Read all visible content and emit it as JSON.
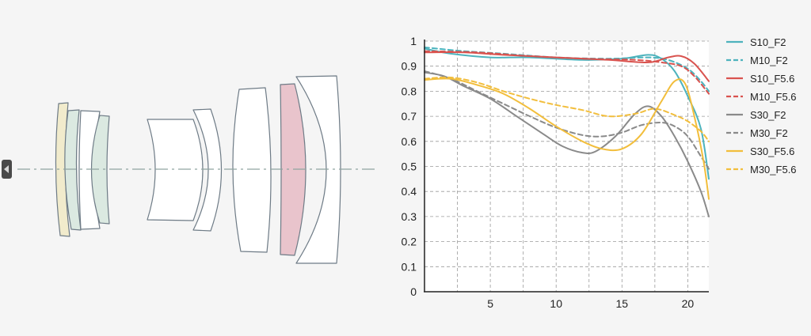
{
  "colors": {
    "background": "#f5f5f5",
    "plot_background": "#ffffff",
    "axis": "#222222",
    "grid": "#9a9a9a",
    "optical_axis": "#8fa3a0",
    "lens_outline": "#6e7b86",
    "element_cream": "#f1ebcc",
    "element_mint": "#dbe9e1",
    "element_pink": "#e9c4cc",
    "element_white": "#ffffff",
    "side_tab": "#4a4a4a"
  },
  "icons": {
    "side_tab": "triangle-left-icon"
  },
  "chart_data": {
    "type": "line",
    "title": "",
    "xlabel": "",
    "ylabel": "",
    "xlim": [
      0,
      21.6
    ],
    "ylim": [
      0,
      1
    ],
    "xticks": [
      5,
      10,
      15,
      20
    ],
    "xtick_labels": [
      "5",
      "10",
      "15",
      "20"
    ],
    "yticks": [
      0,
      0.1,
      0.2,
      0.3,
      0.4,
      0.5,
      0.6,
      0.7,
      0.8,
      0.9,
      1
    ],
    "ytick_labels": [
      "0",
      "0.1",
      "0.2",
      "0.3",
      "0.4",
      "0.5",
      "0.6",
      "0.7",
      "0.8",
      "0.9",
      "1"
    ],
    "vertical_gridlines": [
      2.5,
      5,
      7.5,
      10,
      12.5,
      15,
      17.5,
      20
    ],
    "grid": true,
    "grid_style": "dashed",
    "legend_position": "right",
    "series": [
      {
        "name": "S10_F2",
        "color": "#4db3bd",
        "dash": "solid",
        "points": [
          [
            0,
            0.97
          ],
          [
            2,
            0.95
          ],
          [
            5,
            0.935
          ],
          [
            8,
            0.935
          ],
          [
            12,
            0.925
          ],
          [
            15,
            0.93
          ],
          [
            17,
            0.945
          ],
          [
            18,
            0.93
          ],
          [
            19,
            0.88
          ],
          [
            20,
            0.78
          ],
          [
            21,
            0.65
          ],
          [
            21.6,
            0.45
          ]
        ]
      },
      {
        "name": "M10_F2",
        "color": "#4db3bd",
        "dash": "dashed",
        "points": [
          [
            0,
            0.975
          ],
          [
            3,
            0.96
          ],
          [
            6,
            0.95
          ],
          [
            10,
            0.935
          ],
          [
            14,
            0.93
          ],
          [
            17,
            0.935
          ],
          [
            18.5,
            0.925
          ],
          [
            20,
            0.89
          ],
          [
            21,
            0.84
          ],
          [
            21.6,
            0.8
          ]
        ]
      },
      {
        "name": "S10_F5.6",
        "color": "#d9534f",
        "dash": "solid",
        "points": [
          [
            0,
            0.955
          ],
          [
            3,
            0.955
          ],
          [
            6,
            0.945
          ],
          [
            10,
            0.935
          ],
          [
            14,
            0.925
          ],
          [
            17,
            0.915
          ],
          [
            18.5,
            0.935
          ],
          [
            19.5,
            0.94
          ],
          [
            20.5,
            0.91
          ],
          [
            21.6,
            0.84
          ]
        ]
      },
      {
        "name": "M10_F5.6",
        "color": "#d9534f",
        "dash": "dashed",
        "points": [
          [
            0,
            0.96
          ],
          [
            4,
            0.955
          ],
          [
            8,
            0.94
          ],
          [
            12,
            0.93
          ],
          [
            16,
            0.925
          ],
          [
            18,
            0.915
          ],
          [
            19.5,
            0.9
          ],
          [
            20.5,
            0.86
          ],
          [
            21.6,
            0.79
          ]
        ]
      },
      {
        "name": "S30_F2",
        "color": "#8a8a8a",
        "dash": "solid",
        "points": [
          [
            0,
            0.875
          ],
          [
            1.5,
            0.86
          ],
          [
            3,
            0.82
          ],
          [
            5,
            0.77
          ],
          [
            7,
            0.7
          ],
          [
            9,
            0.63
          ],
          [
            10.5,
            0.58
          ],
          [
            12,
            0.555
          ],
          [
            13,
            0.56
          ],
          [
            14.5,
            0.62
          ],
          [
            16,
            0.71
          ],
          [
            17,
            0.74
          ],
          [
            18,
            0.7
          ],
          [
            19,
            0.62
          ],
          [
            20,
            0.52
          ],
          [
            21,
            0.4
          ],
          [
            21.6,
            0.3
          ]
        ]
      },
      {
        "name": "M30_F2",
        "color": "#8a8a8a",
        "dash": "dashed",
        "points": [
          [
            0,
            0.88
          ],
          [
            2,
            0.85
          ],
          [
            4,
            0.8
          ],
          [
            6,
            0.75
          ],
          [
            8,
            0.7
          ],
          [
            10,
            0.655
          ],
          [
            12,
            0.625
          ],
          [
            13.5,
            0.62
          ],
          [
            15,
            0.635
          ],
          [
            16.5,
            0.665
          ],
          [
            18,
            0.675
          ],
          [
            19,
            0.66
          ],
          [
            20,
            0.62
          ],
          [
            21,
            0.54
          ],
          [
            21.6,
            0.49
          ]
        ]
      },
      {
        "name": "S30_F5.6",
        "color": "#f2be3c",
        "dash": "solid",
        "points": [
          [
            0,
            0.845
          ],
          [
            2,
            0.85
          ],
          [
            4,
            0.825
          ],
          [
            6,
            0.79
          ],
          [
            8,
            0.73
          ],
          [
            10,
            0.66
          ],
          [
            12,
            0.6
          ],
          [
            13.5,
            0.57
          ],
          [
            15,
            0.57
          ],
          [
            16.5,
            0.63
          ],
          [
            18,
            0.76
          ],
          [
            19,
            0.84
          ],
          [
            19.8,
            0.83
          ],
          [
            20.5,
            0.7
          ],
          [
            21.2,
            0.52
          ],
          [
            21.6,
            0.37
          ]
        ]
      },
      {
        "name": "M30_F5.6",
        "color": "#f2be3c",
        "dash": "dashed",
        "points": [
          [
            0,
            0.85
          ],
          [
            2,
            0.855
          ],
          [
            4,
            0.835
          ],
          [
            6,
            0.8
          ],
          [
            8,
            0.77
          ],
          [
            10,
            0.745
          ],
          [
            12,
            0.725
          ],
          [
            14,
            0.7
          ],
          [
            16,
            0.71
          ],
          [
            17.5,
            0.73
          ],
          [
            19,
            0.705
          ],
          [
            20,
            0.68
          ],
          [
            21,
            0.64
          ],
          [
            21.6,
            0.6
          ]
        ]
      }
    ]
  }
}
